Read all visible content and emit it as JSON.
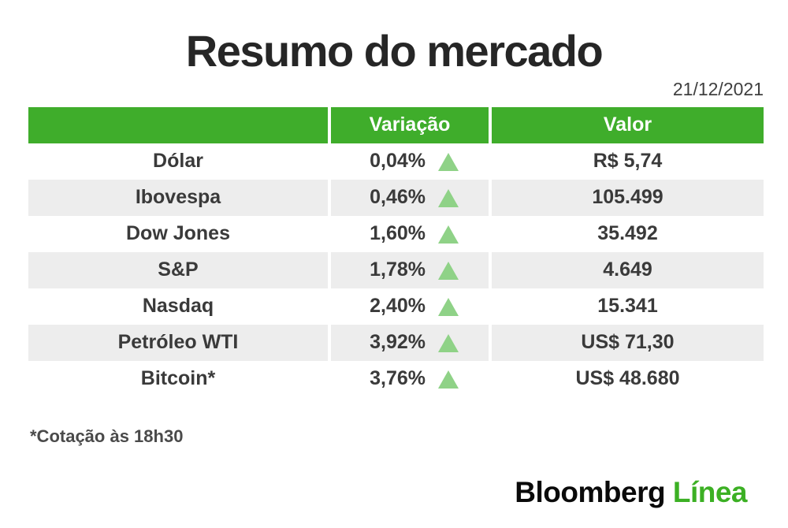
{
  "page": {
    "title": "Resumo do mercado",
    "date": "21/12/2021",
    "footnote": "*Cotação às 18h30"
  },
  "table": {
    "headers": {
      "asset": "",
      "variation": "Variação",
      "value": "Valor"
    },
    "rows": [
      {
        "name": "Dólar",
        "variation": "0,04%",
        "direction": "up",
        "value": "R$ 5,74"
      },
      {
        "name": "Ibovespa",
        "variation": "0,46%",
        "direction": "up",
        "value": "105.499"
      },
      {
        "name": "Dow Jones",
        "variation": "1,60%",
        "direction": "up",
        "value": "35.492"
      },
      {
        "name": "S&P",
        "variation": "1,78%",
        "direction": "up",
        "value": "4.649"
      },
      {
        "name": "Nasdaq",
        "variation": "2,40%",
        "direction": "up",
        "value": "15.341"
      },
      {
        "name": "Petróleo WTI",
        "variation": "3,92%",
        "direction": "up",
        "value": "US$ 71,30"
      },
      {
        "name": "Bitcoin*",
        "variation": "3,76%",
        "direction": "up",
        "value": "US$ 48.680"
      }
    ]
  },
  "logo": {
    "black": "Bloomberg",
    "green": "Línea"
  },
  "colors": {
    "header_green": "#3FAD2B",
    "triangle_green": "#8FD287",
    "row_gray": "#EDEDED",
    "logo_green": "#3CB024"
  },
  "chart_data": {
    "type": "table",
    "title": "Resumo do mercado",
    "date": "21/12/2021",
    "columns": [
      "",
      "Variação",
      "Valor"
    ],
    "rows": [
      [
        "Dólar",
        "0,04%",
        "R$ 5,74"
      ],
      [
        "Ibovespa",
        "0,46%",
        "105.499"
      ],
      [
        "Dow Jones",
        "1,60%",
        "35.492"
      ],
      [
        "S&P",
        "1,78%",
        "4.649"
      ],
      [
        "Nasdaq",
        "2,40%",
        "15.341"
      ],
      [
        "Petróleo WTI",
        "3,92%",
        "US$ 71,30"
      ],
      [
        "Bitcoin*",
        "3,76%",
        "US$ 48.680"
      ]
    ],
    "all_directions": "up",
    "footnote": "*Cotação às 18h30",
    "source_brand": "Bloomberg Línea"
  }
}
